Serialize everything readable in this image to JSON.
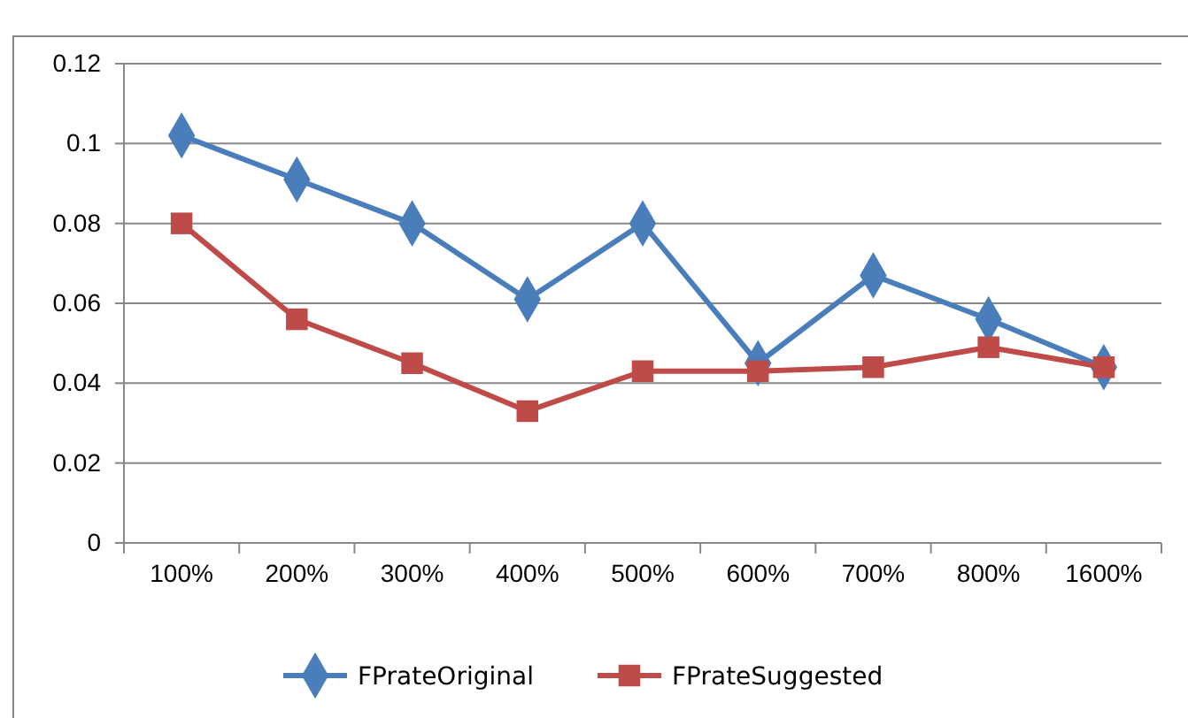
{
  "chart_data": {
    "type": "line",
    "categories": [
      "100%",
      "200%",
      "300%",
      "400%",
      "500%",
      "600%",
      "700%",
      "800%",
      "1600%"
    ],
    "series": [
      {
        "name": "FPrateOriginal",
        "color": "#4a7ebb",
        "marker": "diamond",
        "values": [
          0.102,
          0.091,
          0.08,
          0.061,
          0.08,
          0.045,
          0.067,
          0.056,
          0.044
        ]
      },
      {
        "name": "FPrateSuggested",
        "color": "#be4b48",
        "marker": "square",
        "values": [
          0.08,
          0.056,
          0.045,
          0.033,
          0.043,
          0.043,
          0.044,
          0.049,
          0.044
        ]
      }
    ],
    "ylim": [
      0,
      0.12
    ],
    "yticks": [
      0,
      0.02,
      0.04,
      0.06,
      0.08,
      0.1,
      0.12
    ],
    "grid": "y",
    "legend": "bottom"
  }
}
